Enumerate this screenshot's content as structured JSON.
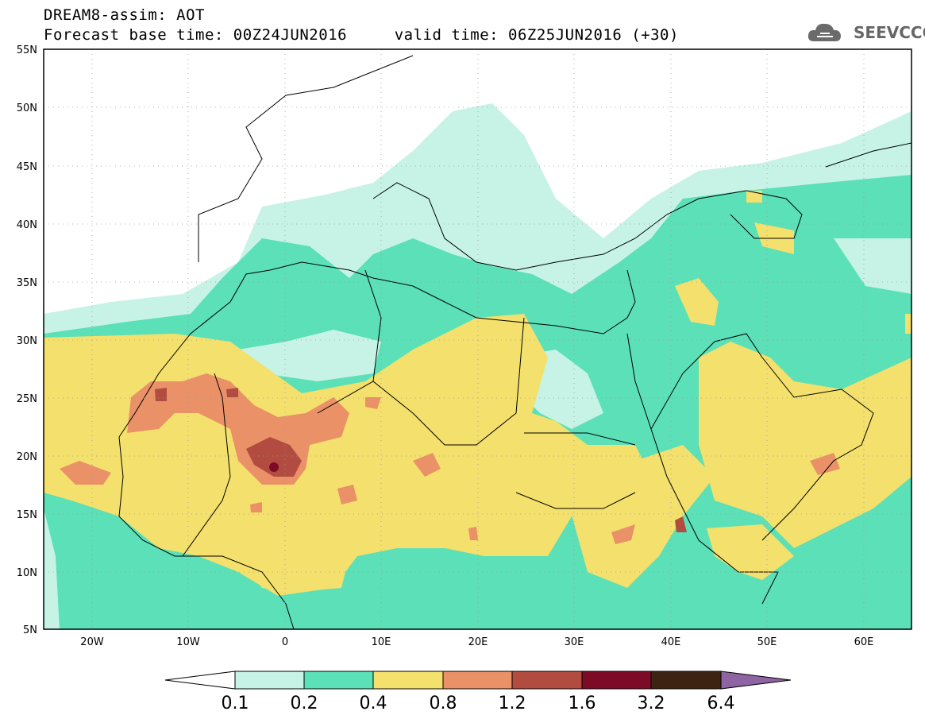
{
  "header": {
    "title_line1": "DREAM8-assim: AOT",
    "title_line2": "Forecast base time: 00Z24JUN2016     valid time: 06Z25JUN2016 (+30)",
    "logo_text": "SEEVCCC"
  },
  "map": {
    "lat_labels": [
      "55N",
      "50N",
      "45N",
      "40N",
      "35N",
      "30N",
      "25N",
      "20N",
      "15N",
      "10N",
      "5N"
    ],
    "lon_labels": [
      "20W",
      "10W",
      "0",
      "10E",
      "20E",
      "30E",
      "40E",
      "50E",
      "60E"
    ]
  },
  "colorbar": {
    "levels": [
      "0.1",
      "0.2",
      "0.4",
      "0.8",
      "1.2",
      "1.6",
      "3.2",
      "6.4"
    ],
    "colors": [
      "#c6f3e6",
      "#5be0b8",
      "#f4e06c",
      "#ea9168",
      "#b24c40",
      "#7d0a26",
      "#3d2312",
      "#8f64a2"
    ],
    "under_color": "#ffffff"
  }
}
